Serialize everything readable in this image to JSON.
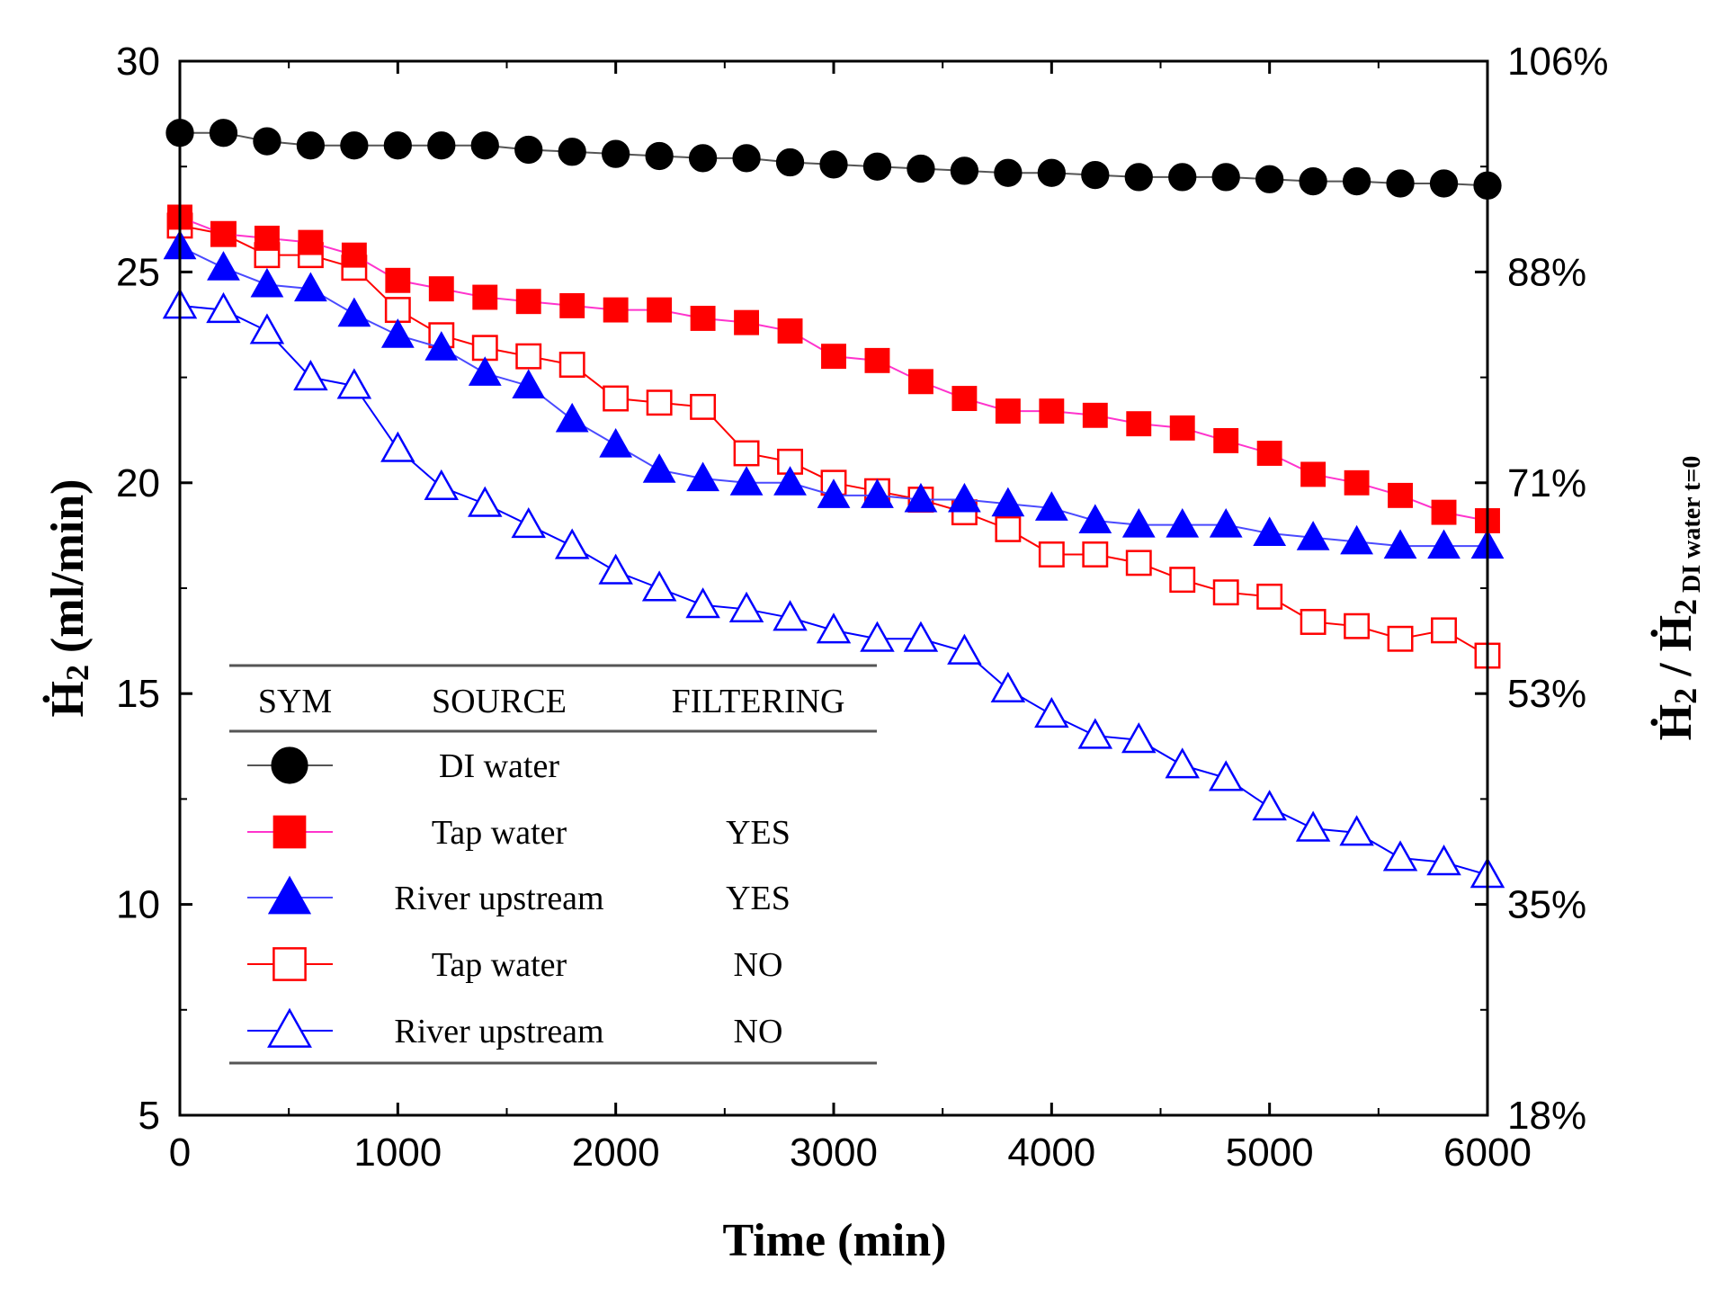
{
  "chart_data": {
    "type": "line",
    "x_axis": {
      "label": "Time (min)",
      "range": [
        0,
        6000
      ],
      "ticks": [
        0,
        1000,
        2000,
        3000,
        4000,
        5000,
        6000
      ],
      "tick_labels": [
        "0",
        "1000",
        "2000",
        "3000",
        "4000",
        "5000",
        "6000"
      ]
    },
    "y_axis_left": {
      "label_main": "Ḣ",
      "label_sub": "2",
      "label_unit": " (ml/min)",
      "range": [
        5,
        30
      ],
      "ticks": [
        5,
        10,
        15,
        20,
        25,
        30
      ],
      "tick_labels": [
        "5",
        "10",
        "15",
        "20",
        "25",
        "30"
      ]
    },
    "y_axis_right": {
      "label_main": "Ḣ",
      "label_sub": "2",
      "label_mid": " / Ḣ",
      "label_sub2": "2",
      "label_sub3": " DI water t=0",
      "tick_labels": [
        "18%",
        "35%",
        "53%",
        "71%",
        "88%",
        "106%"
      ],
      "tick_positions_left_units": [
        5,
        10,
        15,
        20,
        25,
        30
      ]
    },
    "legend": {
      "headers": [
        "SYM",
        "SOURCE",
        "FILTERING"
      ],
      "rows": [
        {
          "source": "DI water",
          "filtering": "",
          "series": 0
        },
        {
          "source": "Tap water",
          "filtering": "YES",
          "series": 1
        },
        {
          "source": "River upstream",
          "filtering": "YES",
          "series": 2
        },
        {
          "source": "Tap water",
          "filtering": "NO",
          "series": 3
        },
        {
          "source": "River upstream",
          "filtering": "NO",
          "series": 4
        }
      ]
    },
    "x": [
      0,
      200,
      400,
      600,
      800,
      1000,
      1200,
      1400,
      1600,
      1800,
      2000,
      2200,
      2400,
      2600,
      2800,
      3000,
      3200,
      3400,
      3600,
      3800,
      4000,
      4200,
      4400,
      4600,
      4800,
      5000,
      5200,
      5400,
      5600,
      5800,
      6000
    ],
    "series": [
      {
        "name": "DI water",
        "marker": "circle",
        "filled": true,
        "color": "#000000",
        "line_color": "#555555",
        "values": [
          28.3,
          28.3,
          28.1,
          28.0,
          28.0,
          28.0,
          28.0,
          28.0,
          27.9,
          27.85,
          27.8,
          27.75,
          27.7,
          27.7,
          27.6,
          27.55,
          27.5,
          27.45,
          27.4,
          27.35,
          27.35,
          27.3,
          27.25,
          27.25,
          27.25,
          27.2,
          27.15,
          27.15,
          27.1,
          27.1,
          27.05
        ]
      },
      {
        "name": "Tap water (filtered)",
        "marker": "square",
        "filled": true,
        "color": "#ff0000",
        "line_color": "#ff33cc",
        "values": [
          26.3,
          25.9,
          25.8,
          25.7,
          25.4,
          24.8,
          24.6,
          24.4,
          24.3,
          24.2,
          24.1,
          24.1,
          23.9,
          23.8,
          23.6,
          23.0,
          22.9,
          22.4,
          22.0,
          21.7,
          21.7,
          21.6,
          21.4,
          21.3,
          21.0,
          20.7,
          20.2,
          20.0,
          19.7,
          19.3,
          19.1
        ]
      },
      {
        "name": "River upstream (filtered)",
        "marker": "triangle",
        "filled": true,
        "color": "#0000ff",
        "line_color": "#4a4aff",
        "values": [
          25.6,
          25.1,
          24.7,
          24.6,
          24.0,
          23.5,
          23.2,
          22.6,
          22.3,
          21.5,
          20.9,
          20.3,
          20.1,
          20.0,
          20.0,
          19.7,
          19.7,
          19.6,
          19.6,
          19.5,
          19.4,
          19.1,
          19.0,
          19.0,
          19.0,
          18.8,
          18.7,
          18.6,
          18.5,
          18.5,
          18.5
        ]
      },
      {
        "name": "Tap water (unfiltered)",
        "marker": "square",
        "filled": false,
        "color": "#ff0000",
        "line_color": "#ff0000",
        "values": [
          26.1,
          25.9,
          25.4,
          25.4,
          25.1,
          24.1,
          23.5,
          23.2,
          23.0,
          22.8,
          22.0,
          21.9,
          21.8,
          20.7,
          20.5,
          20.0,
          19.8,
          19.6,
          19.3,
          18.9,
          18.3,
          18.3,
          18.1,
          17.7,
          17.4,
          17.3,
          16.7,
          16.6,
          16.3,
          16.5,
          15.9
        ]
      },
      {
        "name": "River upstream (unfiltered)",
        "marker": "triangle",
        "filled": false,
        "color": "#0000ff",
        "line_color": "#0000ff",
        "values": [
          24.2,
          24.1,
          23.6,
          22.5,
          22.3,
          20.8,
          19.9,
          19.5,
          19.0,
          18.5,
          17.9,
          17.5,
          17.1,
          17.0,
          16.8,
          16.5,
          16.3,
          16.3,
          16.0,
          15.1,
          14.5,
          14.0,
          13.9,
          13.3,
          13.0,
          12.3,
          11.8,
          11.7,
          11.1,
          11.0,
          10.7
        ]
      }
    ]
  }
}
